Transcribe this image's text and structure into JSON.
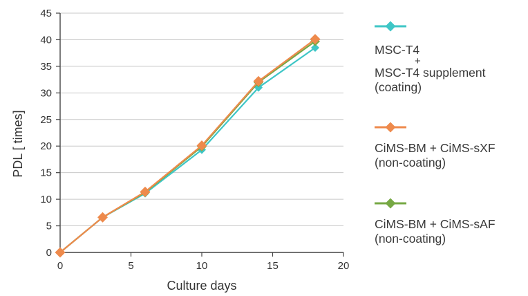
{
  "chart_data": {
    "type": "line",
    "title": "",
    "xlabel": "Culture days",
    "ylabel": "PDL [ times]",
    "xlim": [
      0,
      20
    ],
    "ylim": [
      0,
      45
    ],
    "xticks": [
      0,
      5,
      10,
      15,
      20
    ],
    "yticks": [
      0,
      5,
      10,
      15,
      20,
      25,
      30,
      35,
      40,
      45
    ],
    "grid": "horizontal",
    "legend_position": "right",
    "x": [
      0,
      3,
      6,
      10,
      14,
      18
    ],
    "series": [
      {
        "name": "MSC-T4 + MSC-T4 supplement (coating)",
        "color": "#3ec6c6",
        "marker": "diamond",
        "values": [
          0,
          6.6,
          11.1,
          19.3,
          31.0,
          38.5
        ]
      },
      {
        "name": "CiMS-BM + CiMS-sXF (non-coating)",
        "color": "#ee8a4c",
        "marker": "diamond",
        "values": [
          0,
          6.6,
          11.4,
          20.1,
          32.2,
          40.1
        ]
      },
      {
        "name": "CiMS-BM + CiMS-sAF (non-coating)",
        "color": "#76a844",
        "marker": "diamond",
        "values": [
          0,
          6.6,
          11.3,
          19.9,
          32.0,
          39.7
        ]
      }
    ]
  },
  "legend": {
    "entry1": {
      "line1": "MSC-T4",
      "plus": "+",
      "line2": "MSC-T4 supplement",
      "line3": "(coating)"
    },
    "entry2": {
      "line1": "CiMS-BM + CiMS-sXF",
      "line2": "(non-coating)"
    },
    "entry3": {
      "line1": "CiMS-BM + CiMS-sAF",
      "line2": "(non-coating)"
    }
  }
}
